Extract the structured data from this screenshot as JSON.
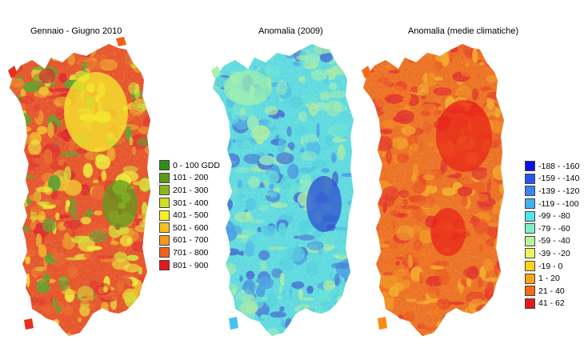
{
  "maps": [
    {
      "title": "Gennaio - Giugno 2010",
      "colors": [
        "#5d9c1c",
        "#d9e12a",
        "#f6ef2c",
        "#f8c21d",
        "#f3941c",
        "#f0601b",
        "#e8311c",
        "#e0191c"
      ]
    },
    {
      "title": "Anomalia (2009)",
      "colors": [
        "#a7f2a5",
        "#8ef0c2",
        "#5fe7dc",
        "#4ad7e4",
        "#45c3ec",
        "#3f9ee8",
        "#3b6fd8"
      ]
    },
    {
      "title": "Anomalia (medie climatiche)",
      "colors": [
        "#fb8a10",
        "#f76a10",
        "#f3520f",
        "#ef3a12",
        "#e9261a",
        "#fba81a"
      ]
    }
  ],
  "legend_gdd": [
    {
      "label": "0 - 100 GDD",
      "color": "#2f8c16"
    },
    {
      "label": "101 - 200",
      "color": "#5a9c16"
    },
    {
      "label": "201 - 300",
      "color": "#8bb71c"
    },
    {
      "label": "301 - 400",
      "color": "#cde021"
    },
    {
      "label": "401 - 500",
      "color": "#f7ef27"
    },
    {
      "label": "501 - 600",
      "color": "#f9c11d"
    },
    {
      "label": "601 - 700",
      "color": "#f59a1b"
    },
    {
      "label": "701 - 800",
      "color": "#f0631b"
    },
    {
      "label": "801 - 900",
      "color": "#e6171c"
    }
  ],
  "legend_anomaly": [
    {
      "label": "-188 - -160",
      "color": "#0a12e6"
    },
    {
      "label": "-159 - -140",
      "color": "#2a55f0"
    },
    {
      "label": "-139 - -120",
      "color": "#3b84f0"
    },
    {
      "label": "-119 - -100",
      "color": "#3fb3ee"
    },
    {
      "label": "-99 - -80",
      "color": "#4fe6e9"
    },
    {
      "label": "-79 - -60",
      "color": "#7ff2c3"
    },
    {
      "label": "-59 - -40",
      "color": "#b7f59b"
    },
    {
      "label": "-39 - -20",
      "color": "#eef25a"
    },
    {
      "label": "-19 - 0",
      "color": "#f8d51c"
    },
    {
      "label": "1 - 20",
      "color": "#fba41a"
    },
    {
      "label": "21 - 40",
      "color": "#f56a12"
    },
    {
      "label": "41 - 62",
      "color": "#e8171b"
    }
  ]
}
